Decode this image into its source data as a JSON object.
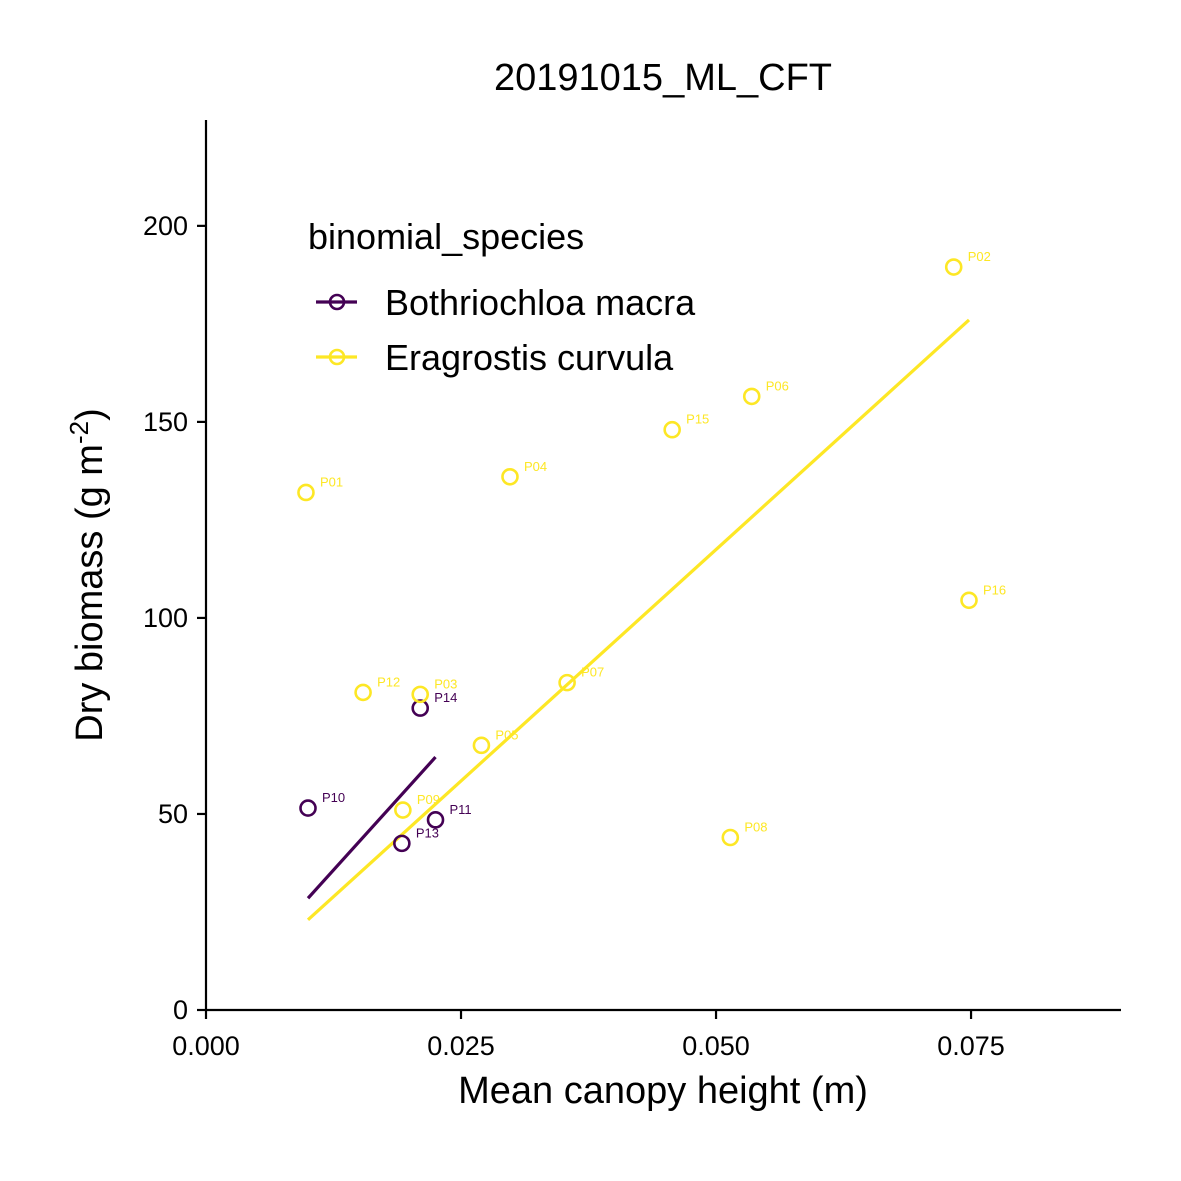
{
  "chart_data": {
    "type": "scatter",
    "title": "20191015_ML_CFT",
    "xlabel": "Mean canopy height (m)",
    "ylabel": "Dry biomass (g m-2)",
    "ylabel_parts": {
      "main": "Dry biomass (g m",
      "sup": "-2",
      "close": ")"
    },
    "xlim": [
      0.0,
      0.0897
    ],
    "ylim": [
      0,
      227
    ],
    "x_ticks": [
      0.0,
      0.025,
      0.05,
      0.075
    ],
    "x_tick_labels": [
      "0.000",
      "0.025",
      "0.050",
      "0.075"
    ],
    "y_ticks": [
      0,
      50,
      100,
      150,
      200
    ],
    "y_tick_labels": [
      "0",
      "50",
      "100",
      "150",
      "200"
    ],
    "grid": false,
    "legend": {
      "title": "binomial_species",
      "placement": "top-left-inside"
    },
    "series": [
      {
        "name": "Bothriochloa macra",
        "color": "#440154",
        "points": [
          {
            "label": "P10",
            "x": 0.01,
            "y": 51.5
          },
          {
            "label": "P13",
            "x": 0.0192,
            "y": 42.5
          },
          {
            "label": "P11",
            "x": 0.0225,
            "y": 48.5
          },
          {
            "label": "P14",
            "x": 0.021,
            "y": 77.0
          }
        ],
        "fit": {
          "x": [
            0.01,
            0.0225
          ],
          "y": [
            28.5,
            64.5
          ]
        }
      },
      {
        "name": "Eragrostis curvula",
        "color": "#FDE725",
        "points": [
          {
            "label": "P01",
            "x": 0.0098,
            "y": 132.0
          },
          {
            "label": "P02",
            "x": 0.0733,
            "y": 189.5
          },
          {
            "label": "P03",
            "x": 0.021,
            "y": 80.5
          },
          {
            "label": "P04",
            "x": 0.0298,
            "y": 136.0
          },
          {
            "label": "P05",
            "x": 0.027,
            "y": 67.5
          },
          {
            "label": "P06",
            "x": 0.0535,
            "y": 156.5
          },
          {
            "label": "P07",
            "x": 0.0354,
            "y": 83.5
          },
          {
            "label": "P08",
            "x": 0.0514,
            "y": 44.0
          },
          {
            "label": "P09",
            "x": 0.0193,
            "y": 51.0
          },
          {
            "label": "P12",
            "x": 0.0154,
            "y": 81.0
          },
          {
            "label": "P15",
            "x": 0.0457,
            "y": 148.0
          },
          {
            "label": "P16",
            "x": 0.0748,
            "y": 104.5
          }
        ],
        "fit": {
          "x": [
            0.01,
            0.0748
          ],
          "y": [
            23.0,
            176.0
          ]
        }
      }
    ]
  }
}
